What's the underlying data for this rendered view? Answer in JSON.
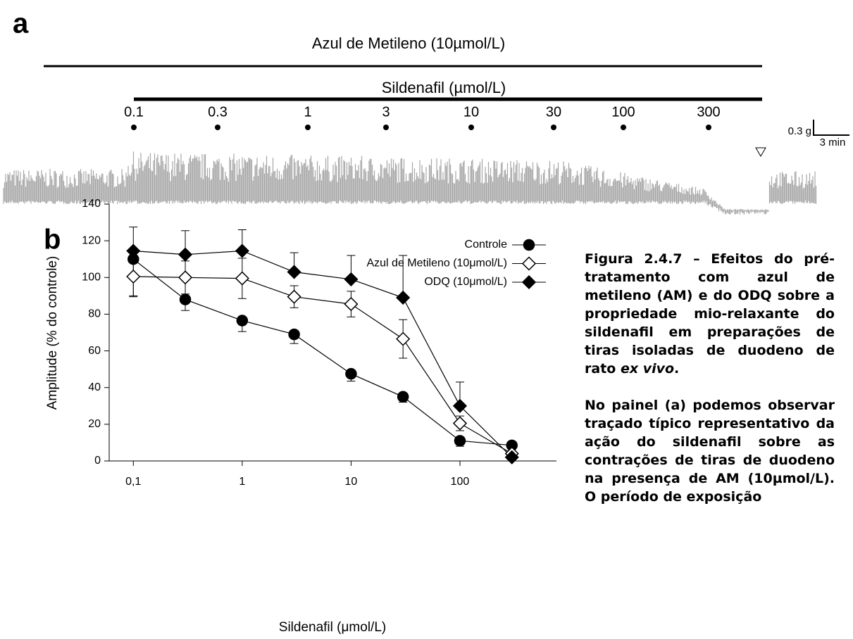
{
  "panel_a": {
    "label": "a",
    "treatment": "Azul de Metileno (10µmol/L)",
    "drug": "Sildenafil (µmol/L)",
    "doses": [
      "0.1",
      "0.3",
      "1",
      "3",
      "10",
      "30",
      "100",
      "300"
    ],
    "scale_force": "0.3 g",
    "scale_time": "3 min"
  },
  "chart_data": {
    "type": "line",
    "panel_label": "b",
    "x_label": "Sildenafil (μmol/L)",
    "y_label": "Amplitude (% do controle)",
    "x": [
      0.1,
      0.3,
      1,
      3,
      10,
      30,
      100,
      300
    ],
    "xlim": [
      0.06,
      770
    ],
    "x_log": true,
    "xticks": [
      {
        "value": 0.1,
        "label": "0,1"
      },
      1,
      10,
      100
    ],
    "ylim": [
      0,
      140
    ],
    "yticks": [
      0,
      20,
      40,
      60,
      80,
      100,
      120,
      140
    ],
    "legend": "upper right",
    "series": [
      {
        "name": "Controle",
        "color": "#000000",
        "marker": "circle",
        "fill": "#000000",
        "error_bars": "down",
        "values": [
          110,
          88,
          76.5,
          69,
          47.5,
          35,
          11,
          8.5
        ],
        "errors": [
          20,
          6,
          6,
          5,
          4,
          3,
          3,
          1
        ]
      },
      {
        "name": "Azul de Metileno (10μmol/L)",
        "color": "#000000",
        "marker": "diamond",
        "fill": "#ffffff",
        "error_bars": "both",
        "values": [
          100.5,
          100,
          99.5,
          89.5,
          85.5,
          66.5,
          20.5,
          4
        ],
        "errors": [
          11,
          9,
          11,
          6,
          7,
          10.5,
          4,
          1
        ]
      },
      {
        "name": "ODQ (10μmol/L)",
        "color": "#000000",
        "marker": "diamond",
        "fill": "#000000",
        "error_bars": "up",
        "values": [
          114.5,
          112.5,
          114.5,
          103,
          99,
          89,
          30,
          2
        ],
        "errors": [
          13,
          13,
          11.5,
          10.5,
          13,
          23,
          13,
          1
        ]
      }
    ]
  },
  "caption": {
    "p1": [
      "Figura 2.4.7 – Efeitos do pré-tratamento com azul de metileno (AM) e do ODQ sobre a propriedade mio-relaxante do sildenafil em preparações de tiras isoladas de duodeno de rato ",
      "ex vivo",
      "."
    ],
    "p2": "No painel (a) podemos observar traçado típico representativo da ação do sildenafil sobre as contrações de tiras de duodeno na presença de AM (10µmol/L). O período de exposição"
  }
}
